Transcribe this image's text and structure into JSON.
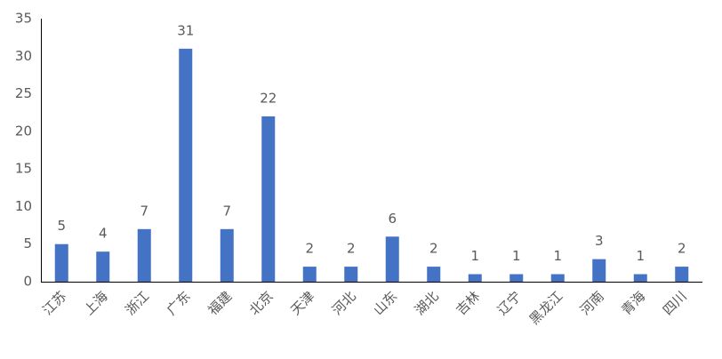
{
  "chart_data": {
    "type": "bar",
    "categories": [
      "江苏",
      "上海",
      "浙江",
      "广东",
      "福建",
      "北京",
      "天津",
      "河北",
      "山东",
      "湖北",
      "吉林",
      "辽宁",
      "黑龙江",
      "河南",
      "青海",
      "四川"
    ],
    "values": [
      5,
      4,
      7,
      31,
      7,
      22,
      2,
      2,
      6,
      2,
      1,
      1,
      1,
      3,
      1,
      2
    ],
    "color": "#4472c4",
    "ylim": [
      0,
      35
    ],
    "yticks": [
      0,
      5,
      10,
      15,
      20,
      25,
      30,
      35
    ],
    "grid": false,
    "data_labels": true
  }
}
